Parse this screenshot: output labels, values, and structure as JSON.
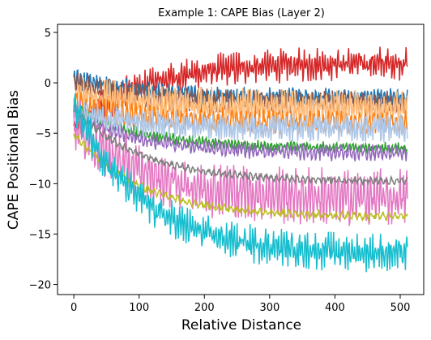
{
  "chart_data": {
    "type": "line",
    "title": "Example 1: CAPE Bias (Layer 2)",
    "xlabel": "Relative Distance",
    "ylabel": "CAPE Positional Bias",
    "xlim": [
      -25,
      536
    ],
    "ylim": [
      -21,
      5.8
    ],
    "xticks": [
      0,
      100,
      200,
      300,
      400,
      500
    ],
    "yticks": [
      5,
      0,
      -5,
      -10,
      -15,
      -20
    ],
    "x_range": [
      0,
      511
    ],
    "grid": false,
    "legend": "none",
    "series": [
      {
        "color": "#d62728",
        "start": -4.5,
        "end": 2.0,
        "noise": 1.6,
        "period": 4
      },
      {
        "color": "#1f77b4",
        "start": 0.5,
        "end": -1.5,
        "noise": 1.0,
        "period": 5
      },
      {
        "color": "#8c564b",
        "start": 0.0,
        "end": -2.0,
        "noise": 1.2,
        "period": 6
      },
      {
        "color": "#ffbb78",
        "start": -1.0,
        "end": -2.5,
        "noise": 1.8,
        "period": 4
      },
      {
        "color": "#ff7f0e",
        "start": -2.0,
        "end": -4.0,
        "noise": 1.2,
        "period": 7
      },
      {
        "color": "#2ca02c",
        "start": -2.5,
        "end": -6.5,
        "noise": 0.6,
        "period": 5
      },
      {
        "color": "#9467bd",
        "start": -3.0,
        "end": -7.0,
        "noise": 0.8,
        "period": 6
      },
      {
        "color": "#aec7e8",
        "start": -3.0,
        "end": -4.5,
        "noise": 1.5,
        "period": 4
      },
      {
        "color": "#e377c2",
        "start": -4.0,
        "end": -11.5,
        "noise": 2.8,
        "period": 5
      },
      {
        "color": "#7f7f7f",
        "start": -2.5,
        "end": -9.8,
        "noise": 0.4,
        "period": 8
      },
      {
        "color": "#bcbd22",
        "start": -5.0,
        "end": -13.3,
        "noise": 0.4,
        "period": 9
      },
      {
        "color": "#17becf",
        "start": -2.0,
        "end": -17.0,
        "noise": 1.8,
        "period": 4
      }
    ]
  }
}
